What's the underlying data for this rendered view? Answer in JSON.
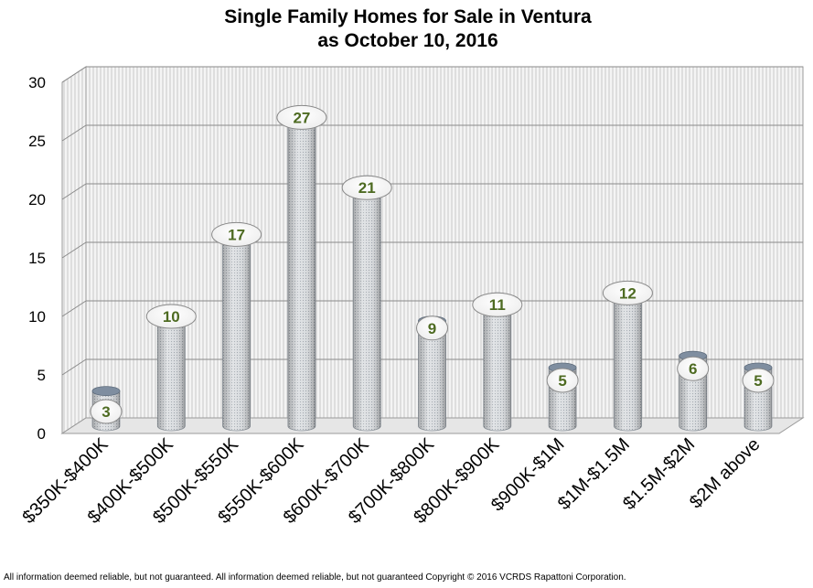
{
  "chart_data": {
    "type": "bar",
    "title": [
      "Single Family Homes for Sale in Ventura",
      "as October 10, 2016"
    ],
    "categories": [
      "$350K-$400K",
      "$400K-$500K",
      "$500K-$550K",
      "$550K-$600K",
      "$600K-$700K",
      "$700K-$800K",
      "$800K-$900K",
      "$900K-$1M",
      "$1M-$1.5M",
      "$1.5M-$2M",
      "$2M above"
    ],
    "values": [
      3,
      10,
      17,
      27,
      21,
      9,
      11,
      5,
      12,
      6,
      5
    ],
    "ylim": [
      0,
      30
    ],
    "yticks": [
      0,
      5,
      10,
      15,
      20,
      25,
      30
    ],
    "grid": true,
    "style": "3d-cylinder",
    "colors": {
      "bar": "#cfd3d6",
      "label_text": "#4e6b22",
      "grid": "#8a8a8a"
    }
  },
  "footer": "All information deemed reliable, but not guaranteed. All information deemed reliable, but not guaranteed Copyright © 2016 VCRDS  Rapattoni Corporation."
}
